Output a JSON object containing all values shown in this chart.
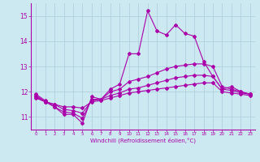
{
  "xlabel": "Windchill (Refroidissement éolien,°C)",
  "background_color": "#cce8f0",
  "line_color": "#aa00aa",
  "grid_color": "#aaccdd",
  "x_values": [
    0,
    1,
    2,
    3,
    4,
    5,
    6,
    7,
    8,
    9,
    10,
    11,
    12,
    13,
    14,
    15,
    16,
    17,
    18,
    19,
    20,
    21,
    22,
    23
  ],
  "line1": [
    11.9,
    11.65,
    11.4,
    11.1,
    11.1,
    10.75,
    11.8,
    11.7,
    12.1,
    12.3,
    13.5,
    13.5,
    15.2,
    14.4,
    14.25,
    14.65,
    14.3,
    14.2,
    13.2,
    12.6,
    12.1,
    12.2,
    12.0,
    11.9
  ],
  "line2": [
    11.85,
    11.6,
    11.4,
    11.2,
    11.15,
    10.95,
    11.7,
    11.7,
    12.0,
    12.1,
    12.4,
    12.5,
    12.6,
    12.75,
    12.9,
    13.0,
    13.05,
    13.1,
    13.1,
    13.0,
    12.2,
    12.1,
    12.0,
    11.9
  ],
  "line3": [
    11.8,
    11.6,
    11.5,
    11.3,
    11.25,
    11.15,
    11.65,
    11.7,
    11.85,
    11.95,
    12.1,
    12.15,
    12.25,
    12.35,
    12.45,
    12.55,
    12.6,
    12.65,
    12.65,
    12.6,
    12.1,
    12.05,
    11.95,
    11.9
  ],
  "line4": [
    11.75,
    11.6,
    11.5,
    11.4,
    11.4,
    11.35,
    11.6,
    11.65,
    11.75,
    11.85,
    11.95,
    12.0,
    12.05,
    12.1,
    12.15,
    12.2,
    12.25,
    12.3,
    12.35,
    12.35,
    12.0,
    11.95,
    11.9,
    11.85
  ],
  "ylim": [
    10.5,
    15.5
  ],
  "yticks": [
    11,
    12,
    13,
    14,
    15
  ],
  "xticks": [
    0,
    1,
    2,
    3,
    4,
    5,
    6,
    7,
    8,
    9,
    10,
    11,
    12,
    13,
    14,
    15,
    16,
    17,
    18,
    19,
    20,
    21,
    22,
    23
  ]
}
